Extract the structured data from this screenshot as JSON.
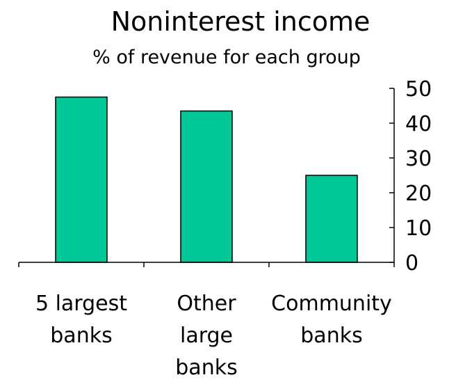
{
  "chart_data": {
    "type": "bar",
    "title": "Noninterest income",
    "subtitle": "% of revenue for each group",
    "categories": [
      "5 largest banks",
      "Other large banks",
      "Community banks"
    ],
    "category_label_lines": [
      [
        "5 largest",
        "banks"
      ],
      [
        "Other",
        "large",
        "banks"
      ],
      [
        "Community",
        "banks"
      ]
    ],
    "values": [
      47.5,
      43.5,
      25
    ],
    "ylim": [
      0,
      50
    ],
    "yticks": [
      0,
      10,
      20,
      30,
      40,
      50
    ],
    "y_axis_side": "right",
    "grid": false,
    "legend": "none",
    "bar_color": "#00c896",
    "bar_edge_color": "#000000"
  }
}
